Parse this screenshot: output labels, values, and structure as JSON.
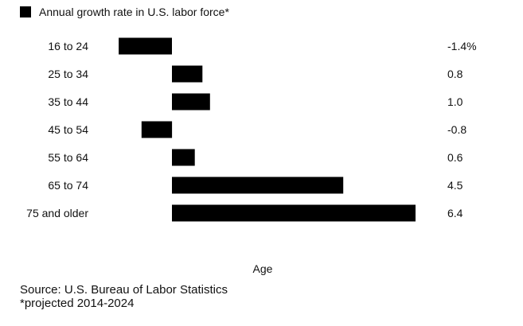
{
  "legend": {
    "label": "Annual growth rate in U.S. labor force*",
    "color": "#000000"
  },
  "chart_data": {
    "type": "bar",
    "orientation": "horizontal",
    "categories": [
      "16 to 24",
      "25 to 34",
      "35 to 44",
      "45 to 54",
      "55 to 64",
      "65 to 74",
      "75 and older"
    ],
    "series": [
      {
        "name": "Annual growth rate in U.S. labor force*",
        "values": [
          -1.4,
          0.8,
          1.0,
          -0.8,
          0.6,
          4.5,
          6.4
        ],
        "color": "#000000"
      }
    ],
    "value_labels": [
      "-1.4%",
      "0.8",
      "1.0",
      "-0.8",
      "0.6",
      "4.5",
      "6.4"
    ],
    "xlabel": "Age",
    "xlim": [
      -1.4,
      6.4
    ],
    "grid": false,
    "legend_position": "top-left"
  },
  "footer": {
    "source": "Source: U.S. Bureau of Labor Statistics",
    "note": "*projected 2014-2024"
  }
}
